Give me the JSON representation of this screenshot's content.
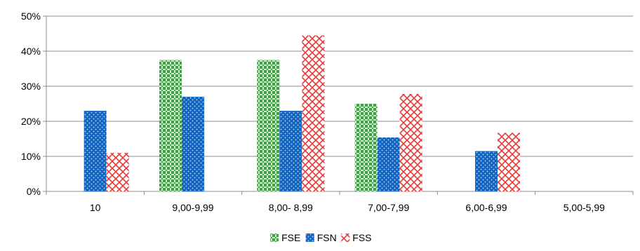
{
  "chart_data": {
    "type": "bar",
    "categories": [
      "10",
      "9,00-9,99",
      "8,00- 8,99",
      "7,00-7,99",
      "6,00-6,99",
      "5,00-5,99"
    ],
    "series": [
      {
        "name": "FSE",
        "values": [
          0,
          37.5,
          37.5,
          25,
          0,
          0
        ],
        "color": "#4caf50",
        "pattern": "green-checker"
      },
      {
        "name": "FSN",
        "values": [
          23,
          27,
          23,
          15.4,
          11.5,
          0
        ],
        "color": "#1565c0",
        "pattern": "blue-dots"
      },
      {
        "name": "FSS",
        "values": [
          11,
          0,
          44.5,
          27.8,
          16.7,
          0
        ],
        "color": "#e53935",
        "pattern": "red-crosshatch"
      }
    ],
    "y_ticks": [
      "0%",
      "10%",
      "20%",
      "30%",
      "40%",
      "50%"
    ],
    "ylim": [
      0,
      50
    ],
    "y_unit": "%",
    "grid": true,
    "legend_position": "bottom-center",
    "title": "",
    "xlabel": "",
    "ylabel": ""
  }
}
